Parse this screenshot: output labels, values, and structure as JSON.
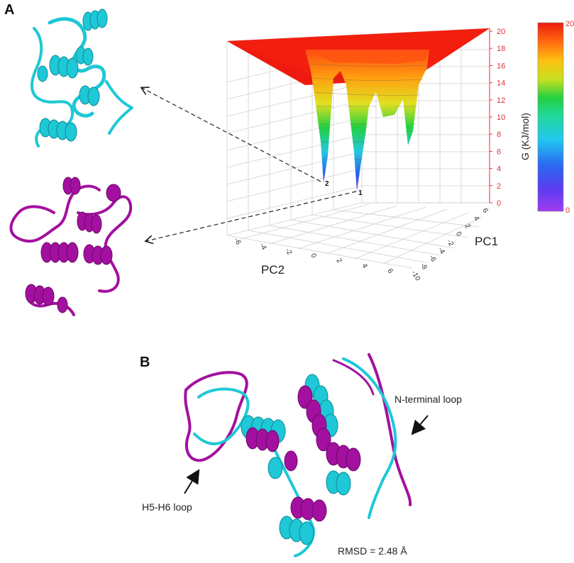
{
  "panels": {
    "a_letter": "A",
    "b_letter": "B"
  },
  "landscape": {
    "pc2_label": "PC2",
    "pc1_label": "PC1",
    "z_ticks": [
      "0",
      "2",
      "4",
      "6",
      "8",
      "10",
      "12",
      "14",
      "16",
      "18",
      "20"
    ],
    "pc2_ticks": [
      "-6",
      "-4",
      "-2",
      "0",
      "2",
      "4",
      "6"
    ],
    "pc1_ticks": [
      "6",
      "4",
      "2",
      "0",
      "-2",
      "-4",
      "-6",
      "-8",
      "-10"
    ],
    "minimum_1": "1",
    "minimum_2": "2"
  },
  "colorbar": {
    "label": "G (KJ/mol)",
    "max_label": "20",
    "min_label": "0"
  },
  "structures": {
    "cyan_color": "#1ec8d6",
    "magenta_color": "#a3109f"
  },
  "panel_b": {
    "n_terminal_label": "N-terminal loop",
    "h5h6_label": "H5-H6 loop",
    "rmsd_label": "RMSD = 2.48 Å"
  }
}
